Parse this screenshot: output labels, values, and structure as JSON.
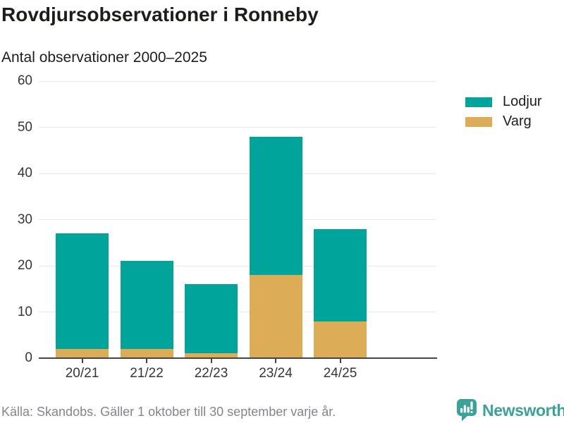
{
  "header": {
    "title": "Rovdjursobservationer i Ronneby",
    "subtitle": "Antal observationer 2000–2025"
  },
  "chart_data": {
    "type": "bar",
    "stacked": true,
    "title": "Rovdjursobservationer i Ronneby",
    "subtitle": "Antal observationer 2000–2025",
    "categories": [
      "20/21",
      "21/22",
      "22/23",
      "23/24",
      "24/25"
    ],
    "series": [
      {
        "name": "Lodjur",
        "color": "#00a49b",
        "values": [
          25,
          19,
          15,
          30,
          20
        ]
      },
      {
        "name": "Varg",
        "color": "#dcac57",
        "values": [
          2,
          2,
          1,
          18,
          8
        ]
      }
    ],
    "stack_bottom_to_top": [
      "Varg",
      "Lodjur"
    ],
    "stacked_totals": [
      27,
      21,
      16,
      48,
      28
    ],
    "xlabel": "",
    "ylabel": "",
    "ylim": [
      0,
      60
    ],
    "yticks": [
      0,
      10,
      20,
      30,
      40,
      50,
      60
    ],
    "grid": "horizontal",
    "legend_position": "top-right"
  },
  "legend": {
    "items": [
      {
        "label": "Lodjur",
        "color": "#00a49b"
      },
      {
        "label": "Varg",
        "color": "#dcac57"
      }
    ]
  },
  "footer": {
    "source": "Källa: Skandobs. Gäller 1 oktober till 30 september varje år.",
    "brand": "Newsworthy"
  },
  "colors": {
    "background": "#ffffff",
    "teal": "#00a49b",
    "gold": "#dcac57",
    "brand_teal": "#3ba29b",
    "title_text": "#1d1d1b",
    "axis_text": "#363636",
    "axis_line": "#464646",
    "gridline": "#e7e7e7",
    "muted_text": "#84848d"
  }
}
